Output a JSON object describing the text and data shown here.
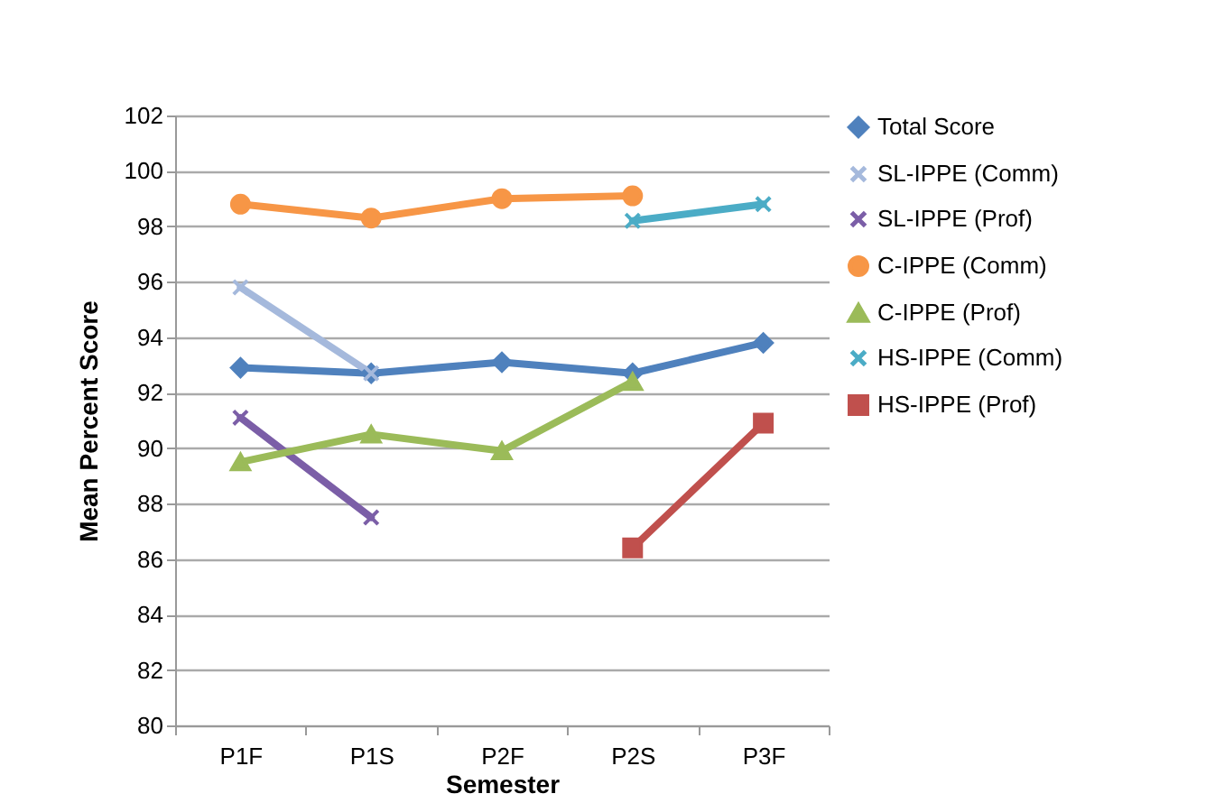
{
  "chart_data": {
    "type": "line",
    "xlabel": "Semester",
    "ylabel": "Mean Percent Score",
    "categories": [
      "P1F",
      "P1S",
      "P2F",
      "P2S",
      "P3F"
    ],
    "series": [
      {
        "name": "Total Score",
        "color": "#4f81bd",
        "marker": "diamond",
        "values": [
          92.9,
          92.7,
          93.1,
          92.7,
          93.8
        ]
      },
      {
        "name": "SL-IPPE (Comm)",
        "color": "#a5b9dc",
        "marker": "cross",
        "values": [
          95.8,
          92.7,
          null,
          null,
          null
        ]
      },
      {
        "name": "SL-IPPE (Prof)",
        "color": "#7b5ea7",
        "marker": "cross",
        "values": [
          91.1,
          87.5,
          null,
          null,
          null
        ]
      },
      {
        "name": "C-IPPE (Comm)",
        "color": "#f79646",
        "marker": "circle",
        "values": [
          98.8,
          98.3,
          99.0,
          99.1,
          null
        ]
      },
      {
        "name": "C-IPPE (Prof)",
        "color": "#9bbb59",
        "marker": "triangle",
        "values": [
          89.5,
          90.5,
          89.9,
          92.4,
          null
        ]
      },
      {
        "name": "HS-IPPE (Comm)",
        "color": "#4bacc6",
        "marker": "cross",
        "values": [
          null,
          null,
          null,
          98.2,
          98.8
        ]
      },
      {
        "name": "HS-IPPE (Prof)",
        "color": "#c0504d",
        "marker": "square",
        "values": [
          null,
          null,
          null,
          86.4,
          90.9
        ]
      }
    ],
    "ylim": [
      80,
      102
    ],
    "yticks": [
      80,
      82,
      84,
      86,
      88,
      90,
      92,
      94,
      96,
      98,
      100,
      102
    ],
    "grid": "y",
    "legend": "right",
    "line_style": "solid"
  }
}
